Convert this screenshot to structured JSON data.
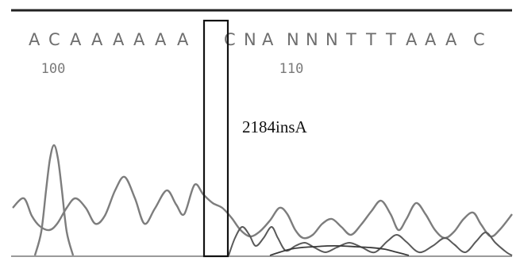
{
  "sequence": {
    "bases": [
      "A",
      "C",
      "A",
      "A",
      "A",
      "A",
      "A",
      "A",
      "C",
      "N",
      "A",
      "N",
      "N",
      "N",
      "T",
      "T",
      "T",
      "A",
      "A",
      "A",
      "C"
    ],
    "positions": [
      {
        "label": "100",
        "base_index": 1
      },
      {
        "label": "110",
        "base_index": 11
      }
    ]
  },
  "annotation": {
    "label": "2184insA",
    "highlighted_base_index": 7
  },
  "colors": {
    "trace_primary": "#7d7d7d",
    "trace_secondary": "#4a4a4a",
    "box": "#111111",
    "frame": "#222222"
  }
}
